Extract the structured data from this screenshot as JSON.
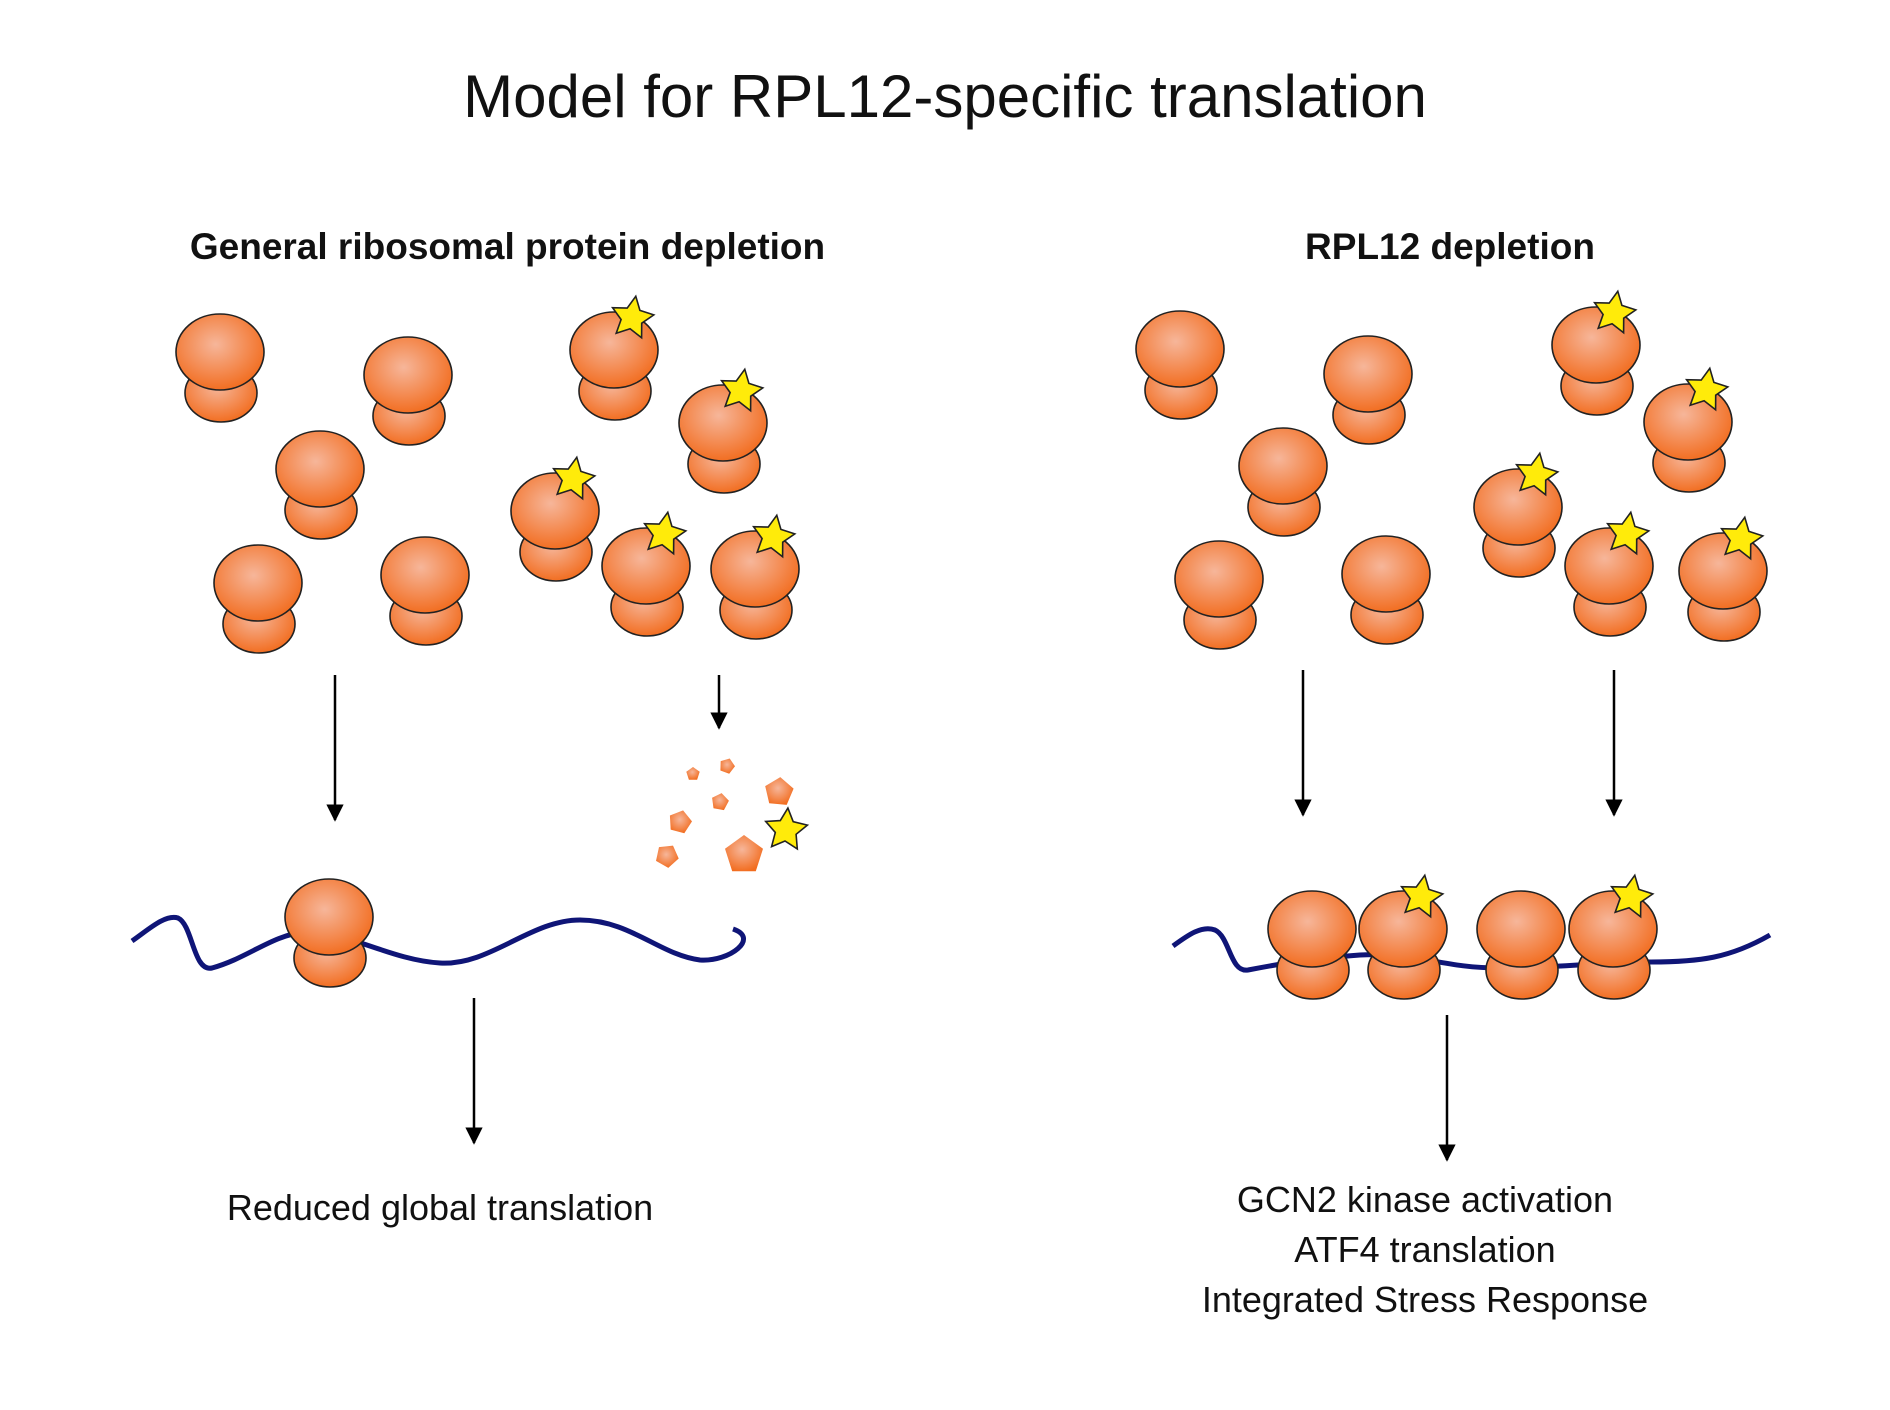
{
  "title": "Model for RPL12-specific translation",
  "panels": {
    "left": {
      "title": "General ribosomal protein depletion",
      "outcome": [
        "Reduced global translation"
      ]
    },
    "right": {
      "title": "RPL12 depletion",
      "outcome": [
        "GCN2 kinase activation",
        "ATF4 translation",
        "Integrated Stress Response"
      ]
    }
  },
  "colors": {
    "ribosome_fill_center": "#f6b69a",
    "ribosome_fill_edge": "#f26c1e",
    "ribosome_outline": "#222222",
    "star_fill": "#ffeb0a",
    "mrna": "#0f1577",
    "arrow": "#000000"
  },
  "icons": [
    "ribosome-icon",
    "star-icon",
    "mrna-strand",
    "fragment-icon"
  ]
}
